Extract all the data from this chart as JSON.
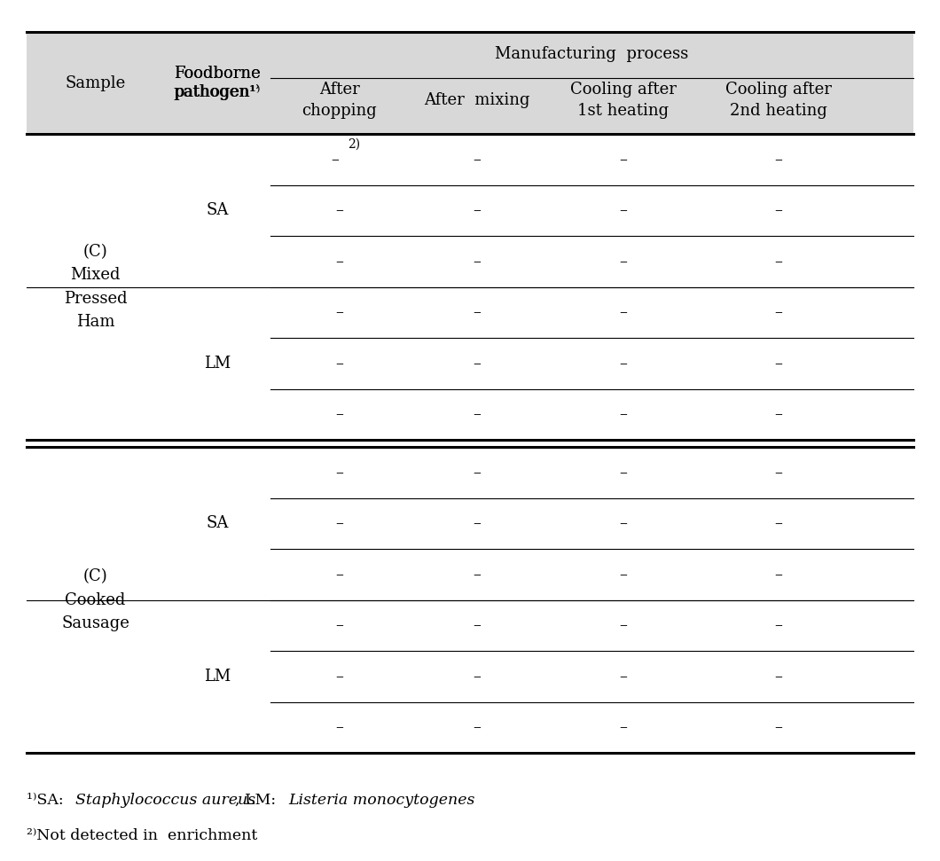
{
  "bg_color": "#f0f0f0",
  "header_bg": "#d8d8d8",
  "white_bg": "#ffffff",
  "title_manufacturing": "Manufacturing  process",
  "col_headers": [
    "After\nchopping",
    "After  mixing",
    "Cooling after\n1st heating",
    "Cooling after\n2nd heating"
  ],
  "col0_header": "Sample",
  "col1_header": "Foodborne\npathogen¹⁾",
  "section1_label": "(C)\nMixed\nPressed\nHam",
  "section2_label": "(C)\nCooked\nSausage",
  "sa_label": "SA",
  "lm_label": "LM",
  "dash": "–",
  "dash_superscript": "–2⁾",
  "footnote1": "¹⁾SA:  Staphylococcus aureus, LM:  Listeria monocytogenes",
  "footnote2": "²⁾Not detected in  enrichment",
  "font_size": 13,
  "footnote_font_size": 12.5
}
